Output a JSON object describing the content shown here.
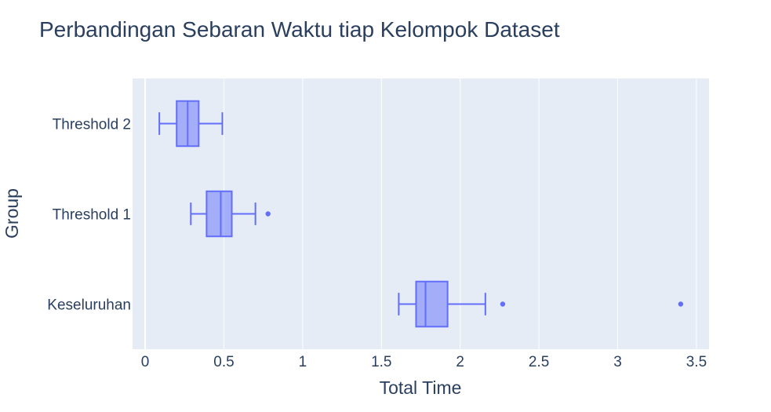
{
  "chart_data": {
    "type": "box",
    "orientation": "horizontal",
    "title": "Perbandingan Sebaran Waktu tiap Kelompok Dataset",
    "xlabel": "Total Time",
    "ylabel": "Group",
    "xlim": [
      -0.08,
      3.58
    ],
    "xticks": [
      0,
      0.5,
      1,
      1.5,
      2,
      2.5,
      3,
      3.5
    ],
    "xtick_labels": [
      "0",
      "0.5",
      "1",
      "1.5",
      "2",
      "2.5",
      "3",
      "3.5"
    ],
    "grid": true,
    "colors": {
      "box": "#636efa",
      "fill": "rgba(99,110,250,0.5)",
      "plot_bg": "#e5ecf6",
      "grid": "#ffffff"
    },
    "categories": [
      "Threshold 2",
      "Threshold 1",
      "Keseluruhan"
    ],
    "boxes": [
      {
        "category": "Threshold 2",
        "lowerfence": 0.09,
        "q1": 0.2,
        "median": 0.27,
        "q3": 0.34,
        "upperfence": 0.49,
        "outliers": []
      },
      {
        "category": "Threshold 1",
        "lowerfence": 0.29,
        "q1": 0.39,
        "median": 0.48,
        "q3": 0.55,
        "upperfence": 0.7,
        "outliers": [
          0.78
        ]
      },
      {
        "category": "Keseluruhan",
        "lowerfence": 1.61,
        "q1": 1.72,
        "median": 1.78,
        "q3": 1.92,
        "upperfence": 2.16,
        "outliers": [
          2.27,
          3.4
        ]
      }
    ]
  }
}
